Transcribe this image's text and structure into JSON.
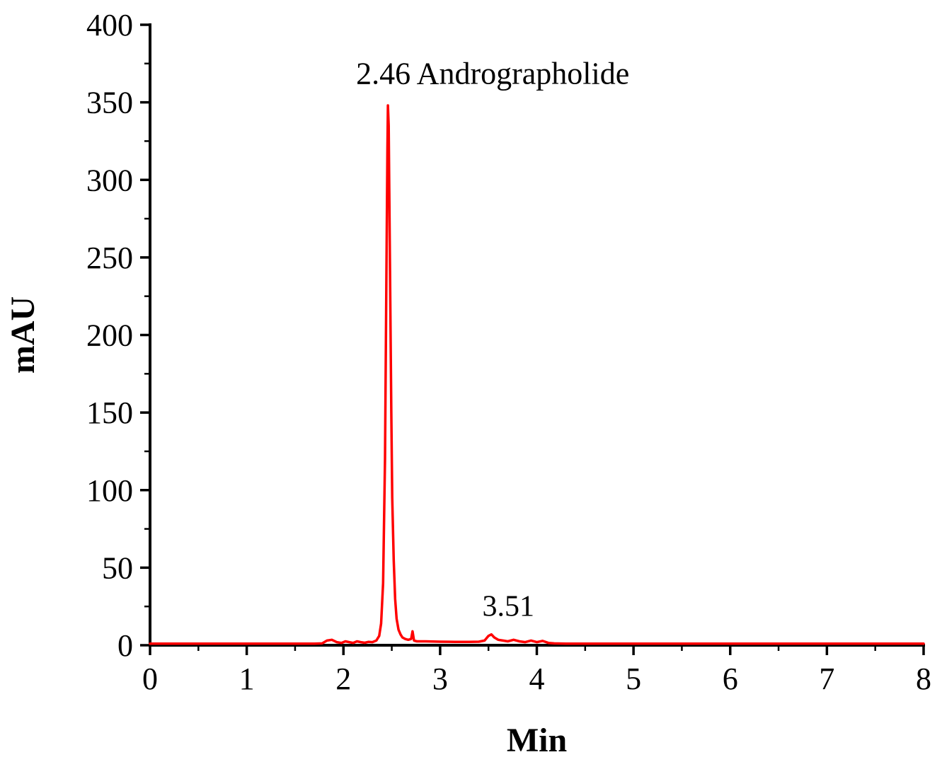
{
  "chart_data": {
    "type": "line",
    "title": "",
    "xlabel": "Min",
    "ylabel": "mAU",
    "xlim": [
      0,
      8
    ],
    "ylim": [
      0,
      400
    ],
    "x_ticks": [
      0,
      1,
      2,
      3,
      4,
      5,
      6,
      7,
      8
    ],
    "y_ticks": [
      0,
      50,
      100,
      150,
      200,
      250,
      300,
      350,
      400
    ],
    "x_minor_step": 0.5,
    "y_minor_step": 25,
    "grid": false,
    "legend": "none",
    "line_color": "#ff0000",
    "axis_color": "#000000",
    "background": "#ffffff",
    "annotations": [
      {
        "text": "2.46 Andrographolide",
        "x": 2.46,
        "y": 362,
        "anchor": "start",
        "dx": -45,
        "style": "annotation-main"
      },
      {
        "text": "3.51",
        "x": 3.53,
        "y": 19,
        "anchor": "middle",
        "dx": 24,
        "style": "annotation-small"
      }
    ],
    "peaks": [
      {
        "retention_time": 2.46,
        "label": "Andrographolide",
        "height_mau": 348
      },
      {
        "retention_time": 3.51,
        "label": "",
        "height_mau": 6
      }
    ],
    "series": [
      {
        "name": "chromatogram",
        "points": [
          [
            0,
            1
          ],
          [
            0.3,
            1
          ],
          [
            0.6,
            1
          ],
          [
            0.9,
            1
          ],
          [
            1.2,
            1
          ],
          [
            1.5,
            1
          ],
          [
            1.7,
            1
          ],
          [
            1.78,
            1.2
          ],
          [
            1.83,
            3
          ],
          [
            1.88,
            3.5
          ],
          [
            1.93,
            2
          ],
          [
            1.98,
            1.5
          ],
          [
            2.02,
            2.5
          ],
          [
            2.06,
            2
          ],
          [
            2.1,
            1.5
          ],
          [
            2.14,
            2.5
          ],
          [
            2.18,
            2
          ],
          [
            2.22,
            1.6
          ],
          [
            2.26,
            2.2
          ],
          [
            2.3,
            2
          ],
          [
            2.34,
            3
          ],
          [
            2.37,
            6
          ],
          [
            2.39,
            14
          ],
          [
            2.41,
            40
          ],
          [
            2.43,
            120
          ],
          [
            2.445,
            240
          ],
          [
            2.455,
            320
          ],
          [
            2.46,
            348
          ],
          [
            2.468,
            335
          ],
          [
            2.475,
            290
          ],
          [
            2.485,
            220
          ],
          [
            2.495,
            150
          ],
          [
            2.505,
            95
          ],
          [
            2.52,
            55
          ],
          [
            2.535,
            30
          ],
          [
            2.55,
            17
          ],
          [
            2.57,
            10
          ],
          [
            2.59,
            7
          ],
          [
            2.61,
            5
          ],
          [
            2.64,
            4
          ],
          [
            2.67,
            3.5
          ],
          [
            2.7,
            4
          ],
          [
            2.715,
            9
          ],
          [
            2.73,
            3
          ],
          [
            2.76,
            2.5
          ],
          [
            2.85,
            2.5
          ],
          [
            3,
            2.3
          ],
          [
            3.15,
            2.2
          ],
          [
            3.3,
            2.2
          ],
          [
            3.4,
            2.3
          ],
          [
            3.46,
            3
          ],
          [
            3.5,
            6
          ],
          [
            3.53,
            7
          ],
          [
            3.56,
            5
          ],
          [
            3.6,
            3.5
          ],
          [
            3.65,
            3
          ],
          [
            3.7,
            2.5
          ],
          [
            3.76,
            3.5
          ],
          [
            3.82,
            2.5
          ],
          [
            3.88,
            2
          ],
          [
            3.94,
            3
          ],
          [
            4,
            2
          ],
          [
            4.06,
            2.8
          ],
          [
            4.12,
            1.5
          ],
          [
            4.18,
            1.2
          ],
          [
            4.3,
            1
          ],
          [
            4.6,
            1
          ],
          [
            5,
            1
          ],
          [
            5.5,
            1
          ],
          [
            6,
            1
          ],
          [
            6.5,
            1
          ],
          [
            7,
            1
          ],
          [
            7.5,
            1
          ],
          [
            8,
            1
          ]
        ]
      }
    ]
  }
}
